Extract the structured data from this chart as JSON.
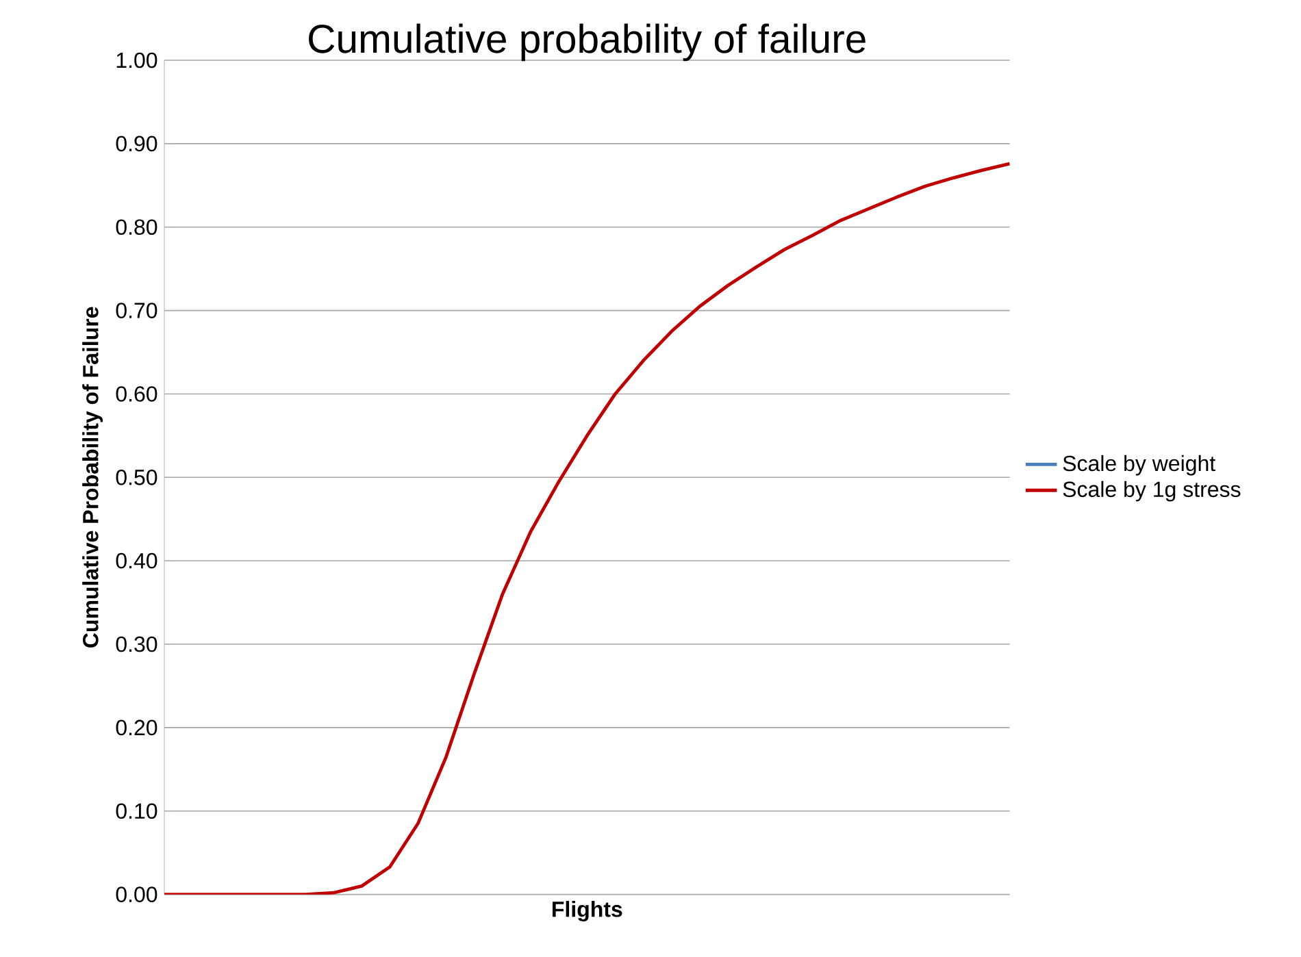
{
  "chart_data": {
    "type": "line",
    "title": "Cumulative probability of failure",
    "xlabel": "Flights",
    "ylabel": "Cumulative Probability of Failure",
    "categories": [
      null,
      null,
      null,
      null,
      null,
      null,
      null,
      null,
      null,
      null,
      null,
      null,
      null,
      null,
      null,
      null,
      null,
      null,
      null,
      null,
      null,
      null,
      null,
      null,
      null,
      null,
      null,
      null,
      null,
      null,
      null
    ],
    "series": [
      {
        "name": "Scale by weight",
        "color": "#4a7ebb",
        "values": [
          null,
          null,
          null,
          null,
          null,
          null,
          null,
          null,
          null,
          null,
          null,
          null,
          null,
          null,
          null,
          null,
          null,
          null,
          null,
          null,
          null,
          null,
          null,
          null,
          null,
          null,
          null,
          null,
          null,
          null,
          null
        ]
      },
      {
        "name": "Scale by 1g stress",
        "color": "#c00000",
        "values": [
          0,
          0,
          0,
          0,
          0,
          0,
          0.002,
          0.01,
          0.033,
          0.085,
          0.165,
          0.265,
          0.36,
          0.435,
          0.495,
          0.55,
          0.6,
          0.64,
          0.675,
          0.705,
          0.73,
          0.752,
          0.773,
          0.79,
          0.808,
          0.822,
          0.836,
          0.849,
          0.859,
          0.868,
          0.876
        ]
      }
    ],
    "ylim": [
      0,
      1
    ],
    "yticks": [
      {
        "value": 0,
        "label": "0.00"
      },
      {
        "value": 0.1,
        "label": "0.10"
      },
      {
        "value": 0.2,
        "label": "0.20"
      },
      {
        "value": 0.3,
        "label": "0.30"
      },
      {
        "value": 0.4,
        "label": "0.40"
      },
      {
        "value": 0.5,
        "label": "0.50"
      },
      {
        "value": 0.6,
        "label": "0.60"
      },
      {
        "value": 0.7,
        "label": "0.70"
      },
      {
        "value": 0.8,
        "label": "0.80"
      },
      {
        "value": 0.9,
        "label": "0.90"
      },
      {
        "value": 1,
        "label": "1.00"
      }
    ],
    "grid": "y",
    "legend": "right",
    "marker": "none",
    "line_style": "solid"
  }
}
